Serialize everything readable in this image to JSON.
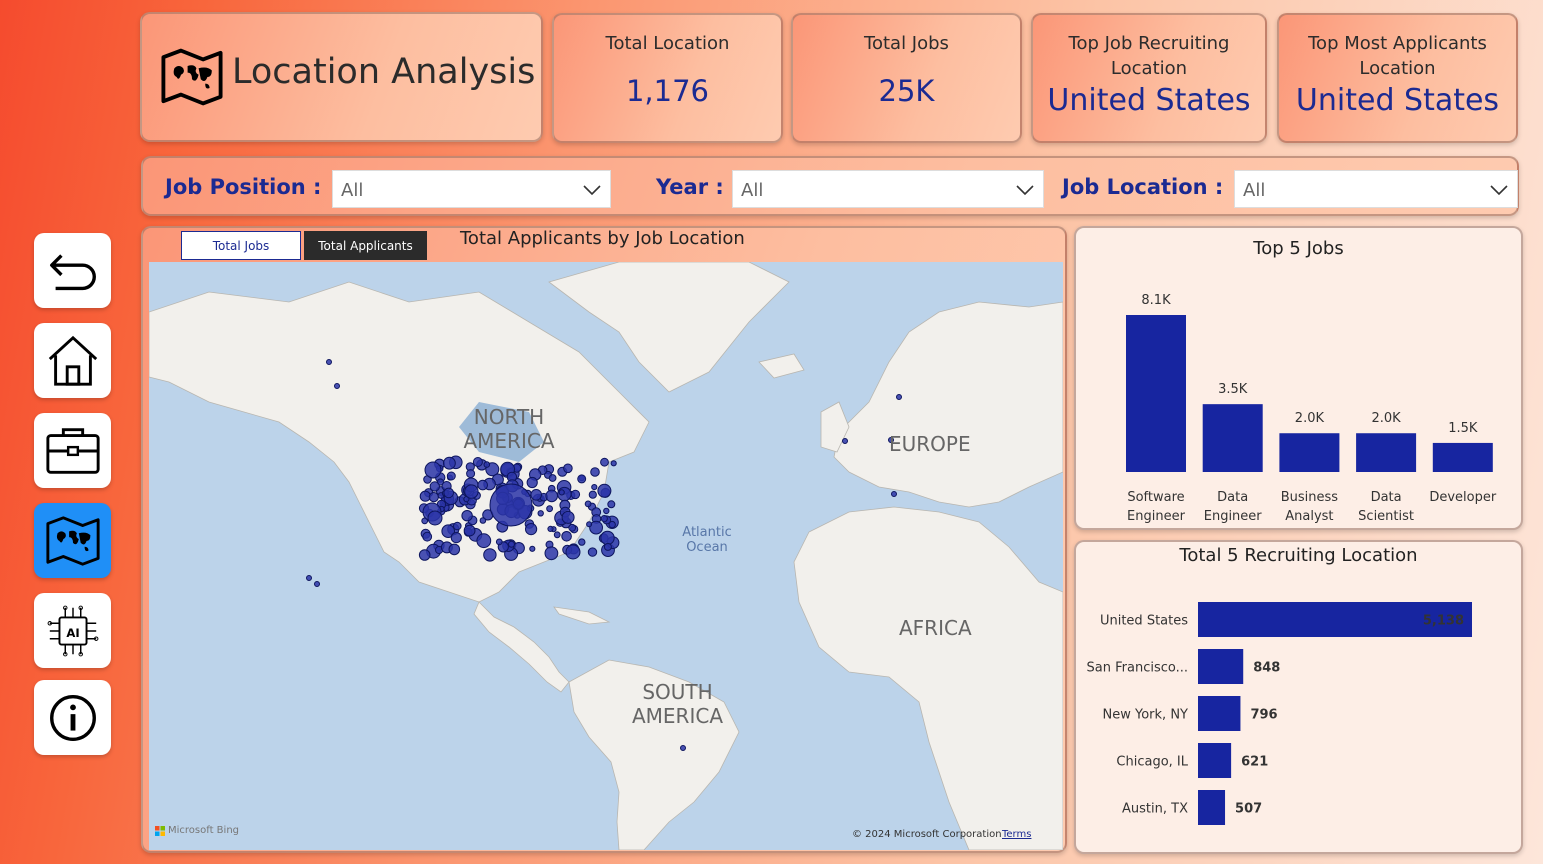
{
  "header": {
    "title": "Location Analysis",
    "kpis": [
      {
        "label": "Total Location",
        "value": "1,176"
      },
      {
        "label": "Total Jobs",
        "value": "25K"
      },
      {
        "label": "Top Job Recruiting Location",
        "value": "United States"
      },
      {
        "label": "Top Most Applicants Location",
        "value": "United States"
      }
    ]
  },
  "filters": [
    {
      "label": "Job Position :",
      "value": "All"
    },
    {
      "label": "Year :",
      "value": "All"
    },
    {
      "label": "Job Location :",
      "value": "All"
    }
  ],
  "nav": [
    {
      "icon": "back-arrow-icon"
    },
    {
      "icon": "home-icon"
    },
    {
      "icon": "briefcase-icon"
    },
    {
      "icon": "world-map-icon",
      "active": true
    },
    {
      "icon": "ai-chip-icon"
    },
    {
      "icon": "info-icon"
    }
  ],
  "map": {
    "toggles": [
      "Total Jobs",
      "Total Applicants"
    ],
    "active_toggle": "Total Applicants",
    "title": "Total Applicants by Job Location",
    "labels": {
      "north_america": "NORTH AMERICA",
      "europe": "EUROPE",
      "africa": "AFRICA",
      "south_america": "SOUTH AMERICA",
      "ocean": "Atlantic Ocean"
    },
    "attribution": "Microsoft Bing",
    "copyright": "© 2024 Microsoft Corporation",
    "terms": "Terms"
  },
  "colors": {
    "accent": "#1b2a92",
    "bar": "#1725a0",
    "nav_active": "#1f8ff7"
  },
  "chart_data": [
    {
      "type": "bar",
      "title": "Top 5 Jobs",
      "categories": [
        "Software Engineer",
        "Data Engineer",
        "Business Analyst",
        "Data Scientist",
        "Developer"
      ],
      "values": [
        8100,
        3500,
        2000,
        2000,
        1500
      ],
      "value_labels": [
        "8.1K",
        "3.5K",
        "2.0K",
        "2.0K",
        "1.5K"
      ],
      "xlabel": "",
      "ylabel": "",
      "grid": false
    },
    {
      "type": "bar",
      "orientation": "horizontal",
      "title": "Total 5 Recruiting Location",
      "categories": [
        "United States",
        "San Francisco...",
        "New York, NY",
        "Chicago, IL",
        "Austin, TX"
      ],
      "values": [
        5138,
        848,
        796,
        621,
        507
      ],
      "value_labels": [
        "5,138",
        "848",
        "796",
        "621",
        "507"
      ],
      "xlabel": "",
      "ylabel": "",
      "grid": false
    }
  ]
}
